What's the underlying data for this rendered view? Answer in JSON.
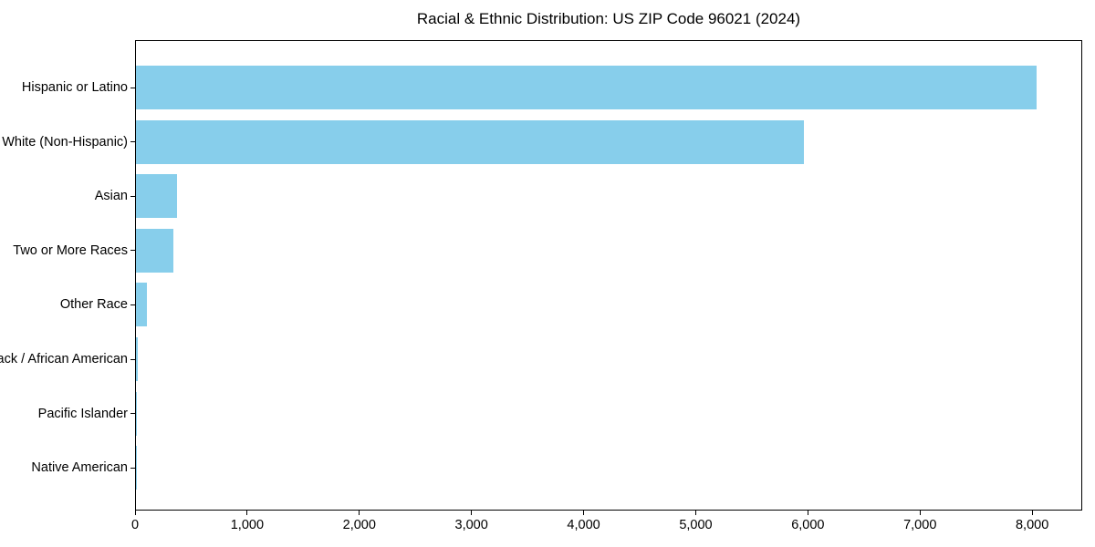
{
  "chart_data": {
    "type": "bar",
    "orientation": "horizontal",
    "title": "Racial & Ethnic Distribution: US ZIP Code 96021 (2024)",
    "categories": [
      "Hispanic or Latino",
      "White (Non-Hispanic)",
      "Asian",
      "Two or More Races",
      "Other Race",
      "Black / African American",
      "Pacific Islander",
      "Native American"
    ],
    "values": [
      8030,
      5960,
      365,
      330,
      100,
      15,
      10,
      5
    ],
    "xlabel": "",
    "ylabel": "",
    "xlim": [
      0,
      8430
    ],
    "xticks": {
      "values": [
        0,
        1000,
        2000,
        3000,
        4000,
        5000,
        6000,
        7000,
        8000
      ],
      "labels": [
        "0",
        "1,000",
        "2,000",
        "3,000",
        "4,000",
        "5,000",
        "6,000",
        "7,000",
        "8,000"
      ]
    },
    "bar_color": "#87CEEB",
    "axis_color": "#000000",
    "text_color": "#000000",
    "background_color": "#ffffff",
    "grid": false,
    "legend": null
  }
}
